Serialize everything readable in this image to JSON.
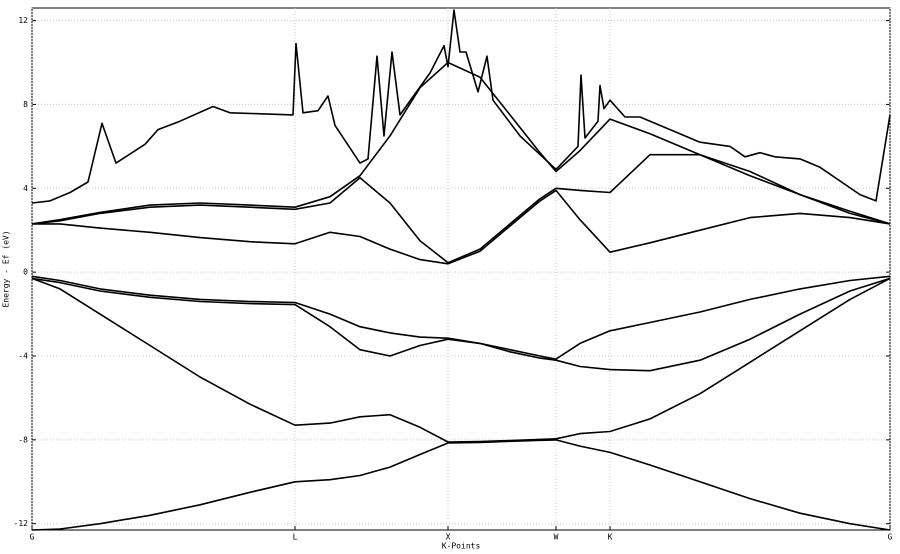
{
  "chart_data": {
    "type": "line",
    "xlabel": "K-Points",
    "ylabel": "Energy - Ef (eV)",
    "xlim": [
      0,
      858
    ],
    "ylim": [
      -12.3,
      12.6
    ],
    "xticks": [
      {
        "value": 0,
        "label": "G"
      },
      {
        "value": 263,
        "label": "L"
      },
      {
        "value": 416,
        "label": "X"
      },
      {
        "value": 524,
        "label": "W"
      },
      {
        "value": 578,
        "label": "K"
      },
      {
        "value": 858,
        "label": "G"
      }
    ],
    "yticks": [
      12,
      8,
      4,
      0,
      -4,
      -8,
      -12
    ],
    "grid": true,
    "x": [
      0,
      28,
      68,
      118,
      168,
      218,
      263,
      298,
      328,
      358,
      388,
      416,
      448,
      478,
      508,
      524,
      548,
      578,
      618,
      668,
      718,
      768,
      818,
      858
    ],
    "series": [
      {
        "color": "#000000",
        "values": [
          -12.3,
          -12.25,
          -12.0,
          -11.6,
          -11.1,
          -10.5,
          -10.0,
          -9.9,
          -9.7,
          -9.3,
          -8.7,
          -8.15,
          -8.12,
          -8.07,
          -8.02,
          -8.0,
          -8.3,
          -8.6,
          -9.2,
          -10.0,
          -10.8,
          -11.5,
          -12.0,
          -12.3
        ]
      },
      {
        "color": "#000000",
        "values": [
          -0.3,
          -0.8,
          -2.0,
          -3.5,
          -5.0,
          -6.3,
          -7.3,
          -7.2,
          -6.9,
          -6.8,
          -7.4,
          -8.1,
          -8.08,
          -8.03,
          -7.98,
          -7.95,
          -7.7,
          -7.6,
          -7.0,
          -5.8,
          -4.3,
          -2.8,
          -1.3,
          -0.3
        ]
      },
      {
        "color": "#000000",
        "values": [
          -0.3,
          -0.5,
          -0.9,
          -1.2,
          -1.4,
          -1.5,
          -1.55,
          -2.6,
          -3.7,
          -4.0,
          -3.5,
          -3.2,
          -3.4,
          -3.8,
          -4.1,
          -4.2,
          -4.5,
          -4.65,
          -4.7,
          -4.2,
          -3.2,
          -2.0,
          -0.9,
          -0.3
        ]
      },
      {
        "color": "#000000",
        "values": [
          -0.2,
          -0.4,
          -0.8,
          -1.1,
          -1.3,
          -1.4,
          -1.45,
          -2.0,
          -2.6,
          -2.9,
          -3.1,
          -3.15,
          -3.4,
          -3.7,
          -4.0,
          -4.15,
          -3.4,
          -2.8,
          -2.4,
          -1.9,
          -1.3,
          -0.8,
          -0.4,
          -0.2
        ]
      },
      {
        "color": "#000000",
        "values": [
          2.3,
          2.3,
          2.1,
          1.9,
          1.65,
          1.45,
          1.35,
          1.9,
          1.7,
          1.1,
          0.6,
          0.4,
          1.0,
          2.2,
          3.4,
          3.9,
          2.5,
          0.95,
          1.4,
          2.0,
          2.6,
          2.8,
          2.6,
          2.3
        ]
      },
      {
        "color": "#000000",
        "values": [
          2.3,
          2.45,
          2.8,
          3.1,
          3.2,
          3.1,
          3.0,
          3.3,
          4.5,
          3.3,
          1.5,
          0.45,
          1.1,
          2.3,
          3.5,
          4.0,
          3.9,
          3.8,
          5.6,
          5.6,
          4.8,
          3.7,
          2.8,
          2.3
        ]
      },
      {
        "color": "#000000",
        "values": [
          2.3,
          2.5,
          2.85,
          3.2,
          3.3,
          3.2,
          3.1,
          3.6,
          4.6,
          6.5,
          8.8,
          10.0,
          9.3,
          7.5,
          5.7,
          4.8,
          5.8,
          7.3,
          6.6,
          5.6,
          4.6,
          3.7,
          2.9,
          2.3
        ]
      },
      {
        "color": "#000000",
        "x": [
          0,
          18,
          38,
          56,
          70,
          84,
          113,
          126,
          148,
          181,
          198,
          261,
          264,
          271,
          286,
          296,
          303,
          328,
          336,
          345,
          352,
          360,
          368,
          398,
          412,
          416,
          422,
          428,
          434,
          446,
          455,
          461,
          488,
          524,
          546,
          549,
          553,
          566,
          568,
          572,
          578,
          593,
          608,
          668,
          698,
          713,
          728,
          743,
          768,
          788,
          828,
          844,
          858
        ],
        "values": [
          3.3,
          3.4,
          3.8,
          4.3,
          7.1,
          5.2,
          6.1,
          6.8,
          7.2,
          7.9,
          7.6,
          7.5,
          10.9,
          7.6,
          7.7,
          8.4,
          7.0,
          5.2,
          5.4,
          10.3,
          6.5,
          10.5,
          7.5,
          9.5,
          10.8,
          9.8,
          12.5,
          10.5,
          10.5,
          8.6,
          10.3,
          8.2,
          6.5,
          4.9,
          6.0,
          9.4,
          6.4,
          7.2,
          8.9,
          7.8,
          8.2,
          7.4,
          7.4,
          6.2,
          6.0,
          5.5,
          5.7,
          5.5,
          5.4,
          5.0,
          3.7,
          3.4,
          7.5
        ]
      }
    ]
  }
}
